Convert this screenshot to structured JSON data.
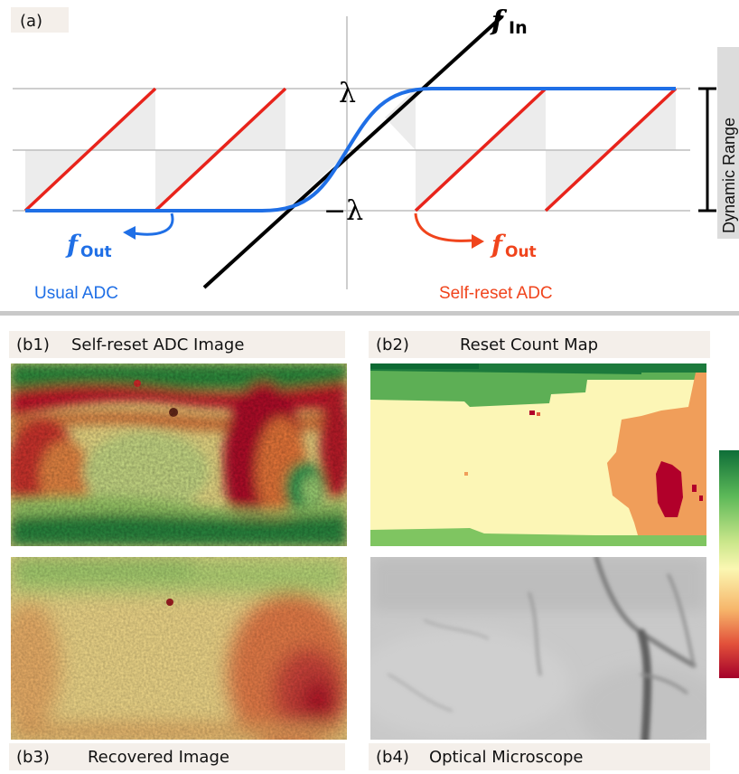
{
  "panel_a": {
    "label": "(a)",
    "f_in": "f",
    "f_in_sub": "In",
    "lambda_pos": "λ",
    "lambda_neg": "−λ",
    "f_out_left": "f",
    "f_out_left_sub": "Out",
    "f_out_right": "f",
    "f_out_right_sub": "Out",
    "usual_adc": "Usual ADC",
    "self_reset_adc": "Self-reset ADC",
    "dynamic_range": "Dynamic Range"
  },
  "panels_b": {
    "b1": {
      "id": "(b1)",
      "title": "Self-reset ADC Image"
    },
    "b2": {
      "id": "(b2)",
      "title": "Reset Count Map"
    },
    "b3": {
      "id": "(b3)",
      "title": "Recovered Image"
    },
    "b4": {
      "id": "(b4)",
      "title": "Optical Microscope"
    }
  },
  "colors": {
    "blue": "#1f6fe6",
    "red": "#e8231b",
    "black": "#000000",
    "colorbar_top": "#1a8a47",
    "colorbar_mid": "#fbf7b2",
    "colorbar_bottom": "#b1002a"
  }
}
